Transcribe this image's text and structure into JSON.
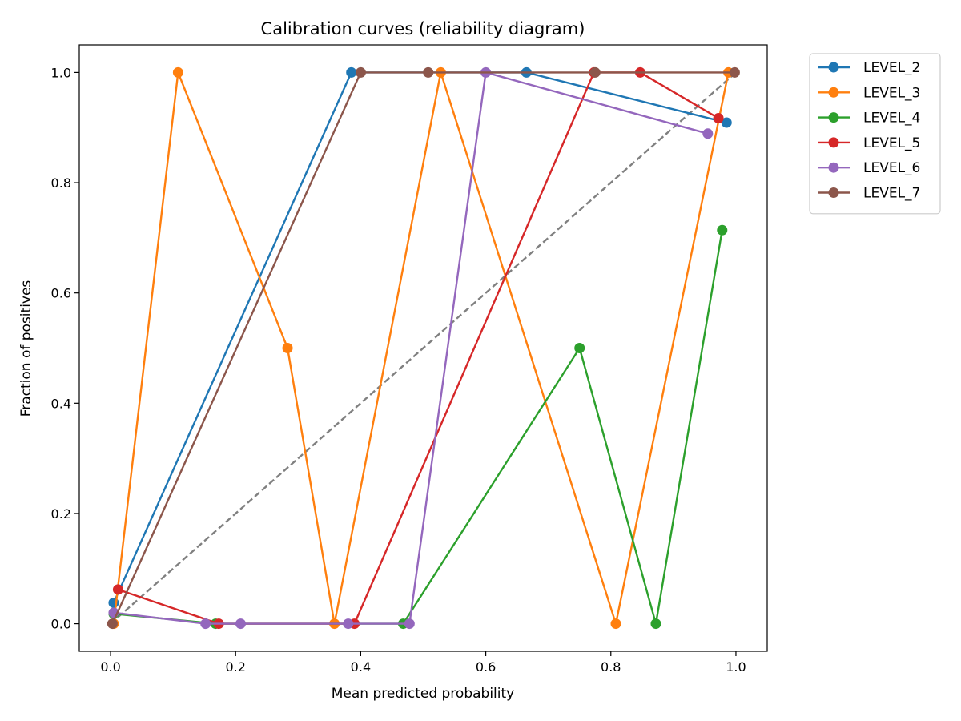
{
  "chart_data": {
    "type": "line",
    "title": "Calibration curves (reliability diagram)",
    "xlabel": "Mean predicted probability",
    "ylabel": "Fraction of positives",
    "xlim": [
      -0.05,
      1.05
    ],
    "ylim": [
      -0.05,
      1.05
    ],
    "xticks": [
      0.0,
      0.2,
      0.4,
      0.6,
      0.8,
      1.0
    ],
    "yticks": [
      0.0,
      0.2,
      0.4,
      0.6,
      0.8,
      1.0
    ],
    "tick_labels_x": [
      "0.0",
      "0.2",
      "0.4",
      "0.6",
      "0.8",
      "1.0"
    ],
    "tick_labels_y": [
      "0.0",
      "0.2",
      "0.4",
      "0.6",
      "0.8",
      "1.0"
    ],
    "grid": false,
    "legend_position": "outside-top-right",
    "reference_line": {
      "style": "dashed",
      "color": "#808080",
      "x": [
        0,
        1
      ],
      "y": [
        0,
        1
      ]
    },
    "series": [
      {
        "name": "LEVEL_2",
        "color": "#1f77b4",
        "x": [
          0.005,
          0.385,
          0.665,
          0.985
        ],
        "y": [
          0.038,
          1.0,
          1.0,
          0.909
        ]
      },
      {
        "name": "LEVEL_3",
        "color": "#ff7f0e",
        "x": [
          0.005,
          0.108,
          0.283,
          0.358,
          0.528,
          0.808,
          0.988
        ],
        "y": [
          0.0,
          1.0,
          0.5,
          0.0,
          1.0,
          0.0,
          1.0
        ]
      },
      {
        "name": "LEVEL_4",
        "color": "#2ca02c",
        "x": [
          0.005,
          0.168,
          0.468,
          0.75,
          0.872,
          0.978
        ],
        "y": [
          0.018,
          0.0,
          0.0,
          0.5,
          0.0,
          0.714
        ]
      },
      {
        "name": "LEVEL_5",
        "color": "#d62728",
        "x": [
          0.012,
          0.173,
          0.39,
          0.773,
          0.847,
          0.972
        ],
        "y": [
          0.062,
          0.0,
          0.0,
          1.0,
          1.0,
          0.917
        ]
      },
      {
        "name": "LEVEL_6",
        "color": "#9467bd",
        "x": [
          0.005,
          0.152,
          0.208,
          0.38,
          0.478,
          0.6,
          0.955
        ],
        "y": [
          0.02,
          0.0,
          0.0,
          0.0,
          0.0,
          1.0,
          0.889
        ]
      },
      {
        "name": "LEVEL_7",
        "color": "#8c564b",
        "x": [
          0.003,
          0.4,
          0.508,
          0.775,
          0.998
        ],
        "y": [
          0.0,
          1.0,
          1.0,
          1.0,
          1.0
        ]
      }
    ]
  }
}
